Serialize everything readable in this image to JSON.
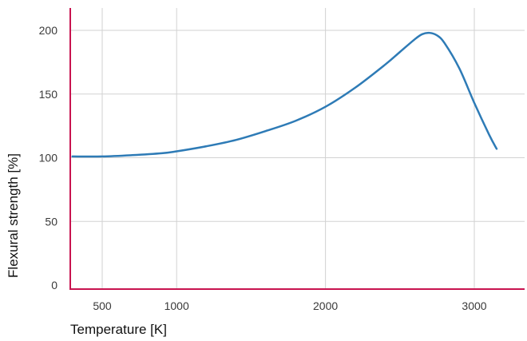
{
  "chart_data": {
    "type": "line",
    "title": "",
    "xlabel": "Temperature [K]",
    "ylabel": "Flexural strength [%]",
    "xlim": [
      300,
      3200
    ],
    "ylim": [
      0,
      220
    ],
    "x_ticks": [
      500,
      1000,
      2000,
      3000
    ],
    "y_ticks": [
      0,
      50,
      100,
      150,
      200
    ],
    "grid": {
      "x": true,
      "y": true
    },
    "axis_color": "#c8134f",
    "series": [
      {
        "name": "",
        "color": "#2e7bb6",
        "x": [
          300,
          500,
          700,
          900,
          1000,
          1200,
          1400,
          1600,
          1800,
          2000,
          2200,
          2400,
          2500,
          2600,
          2650,
          2700,
          2750,
          2800,
          2900,
          3000,
          3100,
          3150
        ],
        "y": [
          101,
          101,
          102,
          103.5,
          105,
          109,
          114,
          121,
          129,
          140,
          155,
          173,
          183,
          193,
          197,
          198,
          196,
          190,
          170,
          143,
          118,
          107
        ]
      }
    ]
  }
}
